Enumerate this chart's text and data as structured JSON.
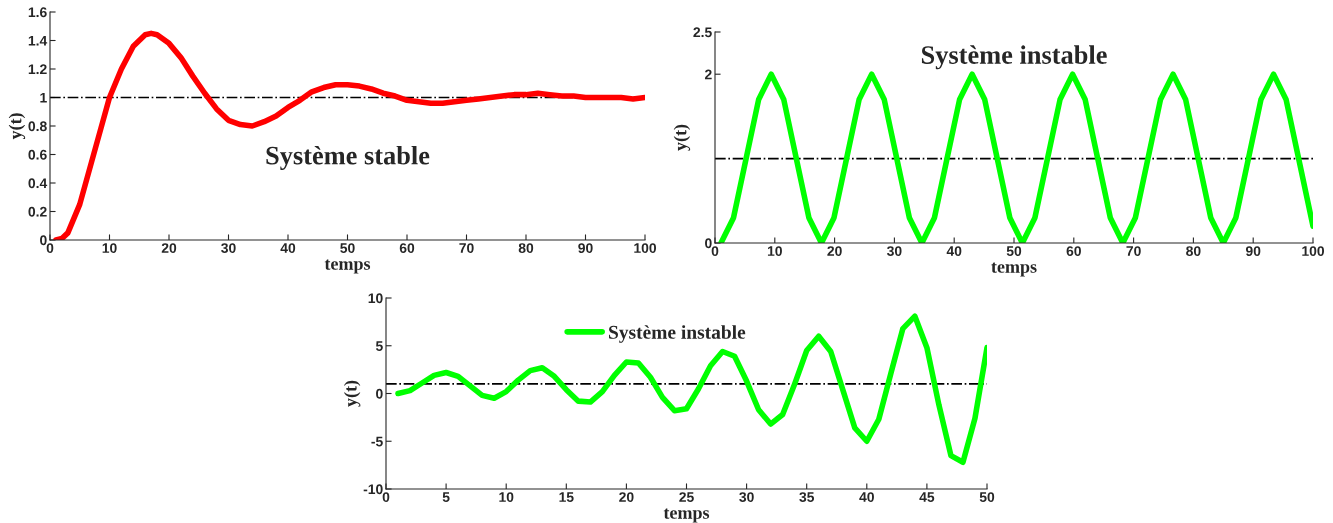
{
  "chart_data": [
    {
      "type": "line",
      "title": "Système stable",
      "xlabel": "temps",
      "ylabel": "y(t)",
      "xlim": [
        0,
        100
      ],
      "xticks": [
        0,
        10,
        20,
        30,
        40,
        50,
        60,
        70,
        80,
        90,
        100
      ],
      "ylim": [
        0,
        1.6
      ],
      "yticks": [
        0,
        0.2,
        0.4,
        0.6,
        0.8,
        1,
        1.2,
        1.4,
        1.6
      ],
      "grid": false,
      "legend": false,
      "ref_lines": [
        {
          "axis": "y",
          "value": 1,
          "color": "#000000",
          "line_style": "dashdot"
        }
      ],
      "series": [
        {
          "color": "#ff0000",
          "x": [
            1,
            2,
            3,
            5,
            7,
            9,
            10,
            12,
            14,
            16,
            17,
            18,
            20,
            22,
            24,
            26,
            28,
            30,
            32,
            34,
            36,
            38,
            40,
            42,
            44,
            46,
            48,
            50,
            52,
            54,
            56,
            58,
            60,
            62,
            64,
            66,
            68,
            70,
            72,
            74,
            76,
            78,
            80,
            82,
            84,
            86,
            88,
            90,
            92,
            94,
            96,
            98,
            100
          ],
          "values": [
            0,
            0.01,
            0.05,
            0.25,
            0.55,
            0.85,
            1.0,
            1.2,
            1.36,
            1.44,
            1.45,
            1.44,
            1.38,
            1.28,
            1.15,
            1.03,
            0.92,
            0.84,
            0.81,
            0.8,
            0.83,
            0.87,
            0.93,
            0.98,
            1.04,
            1.07,
            1.09,
            1.09,
            1.08,
            1.06,
            1.03,
            1.01,
            0.98,
            0.97,
            0.96,
            0.96,
            0.97,
            0.98,
            0.99,
            1.0,
            1.01,
            1.02,
            1.02,
            1.03,
            1.02,
            1.01,
            1.01,
            1.0,
            1.0,
            1.0,
            1.0,
            0.99,
            1.0
          ]
        }
      ]
    },
    {
      "type": "line",
      "title": "Système instable",
      "xlabel": "temps",
      "ylabel": "y(t)",
      "xlim": [
        0,
        100
      ],
      "xticks": [
        0,
        10,
        20,
        30,
        40,
        50,
        60,
        70,
        80,
        90,
        100
      ],
      "ylim": [
        0,
        2.5
      ],
      "yticks": [
        0,
        2,
        2.5
      ],
      "grid": false,
      "legend": false,
      "ref_lines": [
        {
          "axis": "y",
          "value": 1,
          "color": "#000000",
          "line_style": "dashdot"
        }
      ],
      "series": [
        {
          "color": "#00ff00",
          "x": [
            1,
            3.1,
            5.2,
            7.3,
            9.4,
            11.5,
            13.6,
            15.7,
            17.8,
            19.9,
            22,
            24.1,
            26.2,
            28.3,
            30.4,
            32.5,
            34.6,
            36.7,
            38.8,
            40.9,
            43,
            45.1,
            47.2,
            49.3,
            51.4,
            53.5,
            55.6,
            57.7,
            59.8,
            61.9,
            64,
            66.1,
            68.2,
            70.3,
            72.4,
            74.5,
            76.6,
            78.7,
            80.8,
            82.9,
            85,
            87.1,
            89.2,
            91.3,
            93.4,
            95.5,
            97.6,
            100
          ],
          "values": [
            0,
            0.3,
            1,
            1.7,
            2,
            1.7,
            1,
            0.3,
            0,
            0.3,
            1,
            1.7,
            2,
            1.7,
            1,
            0.3,
            0,
            0.3,
            1,
            1.7,
            2,
            1.7,
            1,
            0.3,
            0,
            0.3,
            1,
            1.7,
            2,
            1.7,
            1,
            0.3,
            0,
            0.3,
            1,
            1.7,
            2,
            1.7,
            1,
            0.3,
            0,
            0.3,
            1,
            1.7,
            2,
            1.7,
            1,
            0.2
          ]
        }
      ]
    },
    {
      "type": "line",
      "xlabel": "temps",
      "ylabel": "y(t)",
      "xlim": [
        0,
        50
      ],
      "xticks": [
        0,
        5,
        10,
        15,
        20,
        25,
        30,
        35,
        40,
        45,
        50
      ],
      "ylim": [
        -10,
        10
      ],
      "yticks": [
        -10,
        -5,
        0,
        5,
        10
      ],
      "grid": false,
      "legend": "top",
      "ref_lines": [
        {
          "axis": "y",
          "value": 1,
          "color": "#000000",
          "line_style": "dashdot"
        }
      ],
      "series": [
        {
          "name": "Système instable",
          "color": "#00ff00",
          "x": [
            1,
            2,
            3,
            4,
            5,
            6,
            7,
            8,
            9,
            10,
            11,
            12,
            13,
            14,
            15,
            16,
            17,
            18,
            19,
            20,
            21,
            22,
            23,
            24,
            25,
            26,
            27,
            28,
            29,
            30,
            31,
            32,
            33,
            34,
            35,
            36,
            37,
            38,
            39,
            40,
            41,
            42,
            43,
            44,
            45,
            46,
            47,
            48,
            49,
            50
          ],
          "values": [
            0,
            0.3,
            1.1,
            1.9,
            2.2,
            1.8,
            0.8,
            -0.2,
            -0.5,
            0.2,
            1.4,
            2.4,
            2.7,
            1.8,
            0.4,
            -0.8,
            -0.9,
            0.2,
            1.9,
            3.3,
            3.2,
            1.7,
            -0.4,
            -1.8,
            -1.6,
            0.5,
            2.9,
            4.4,
            3.9,
            1.3,
            -1.7,
            -3.2,
            -2.2,
            1.0,
            4.5,
            6.0,
            4.4,
            0.4,
            -3.6,
            -5.0,
            -2.7,
            2.1,
            6.8,
            8.1,
            4.8,
            -1.2,
            -6.5,
            -7.2,
            -2.6,
            4.8
          ]
        }
      ]
    }
  ]
}
